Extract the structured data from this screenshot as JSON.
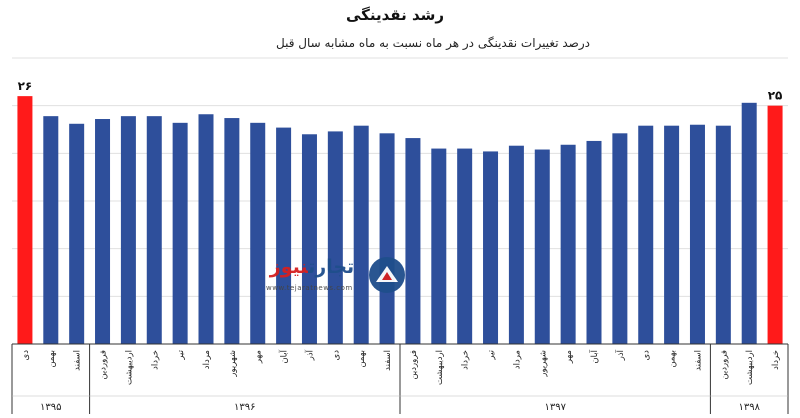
{
  "title": "رشد نقدینگی",
  "subtitle": "درصد تغییرات نقدینگی در هر ماه نسبت به ماه مشابه سال قبل",
  "logo": {
    "name_part1": "تجارت",
    "name_part2": "نیوز",
    "url": "www.tejaratnews.com"
  },
  "colors": {
    "bar": "#2e4f9b",
    "highlight": "#ff1a1a",
    "grid": "#e0e0e0",
    "axis": "#333333"
  },
  "chart_data": {
    "type": "bar",
    "categories": [
      "دی",
      "بهمن",
      "اسفند",
      "فروردین",
      "اردیبهشت",
      "خرداد",
      "تیر",
      "مرداد",
      "شهریور",
      "مهر",
      "آبان",
      "آذر",
      "دی",
      "بهمن",
      "اسفند",
      "فروردین",
      "اردیبهشت",
      "خرداد",
      "تیر",
      "مرداد",
      "شهریور",
      "مهر",
      "آبان",
      "آذر",
      "دی",
      "بهمن",
      "اسفند",
      "فروردین",
      "اردیبهشت",
      "خرداد"
    ],
    "values": [
      26,
      23.9,
      23.1,
      23.6,
      23.9,
      23.9,
      23.2,
      24.1,
      23.7,
      23.2,
      22.7,
      22.0,
      22.3,
      22.9,
      22.1,
      21.6,
      20.5,
      20.5,
      20.2,
      20.8,
      20.4,
      20.9,
      21.3,
      22.1,
      22.9,
      22.9,
      23.0,
      22.9,
      25.3,
      25
    ],
    "data_labels": [
      "۲۶",
      "",
      "",
      "",
      "",
      "",
      "",
      "",
      "",
      "",
      "",
      "",
      "",
      "",
      "",
      "",
      "",
      "",
      "",
      "",
      "",
      "",
      "",
      "",
      "",
      "",
      "",
      "",
      "",
      "۲۵"
    ],
    "highlight_indices": [
      0,
      29
    ],
    "ylim": [
      0,
      30
    ],
    "grid": true,
    "year_groups": [
      {
        "label": "۱۳۹۵",
        "start": 0,
        "end": 2
      },
      {
        "label": "۱۳۹۶",
        "start": 3,
        "end": 14
      },
      {
        "label": "۱۳۹۷",
        "start": 15,
        "end": 26
      },
      {
        "label": "۱۳۹۸",
        "start": 27,
        "end": 29
      }
    ]
  }
}
